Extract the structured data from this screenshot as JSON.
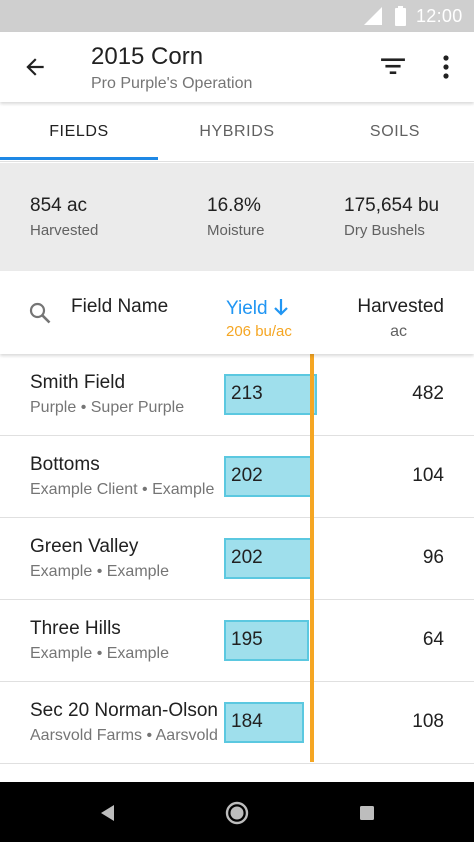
{
  "status_bar": {
    "time": "12:00"
  },
  "app_bar": {
    "title": "2015 Corn",
    "subtitle": "Pro Purple's Operation"
  },
  "tabs": [
    {
      "label": "FIELDS",
      "active": true
    },
    {
      "label": "HYBRIDS",
      "active": false
    },
    {
      "label": "SOILS",
      "active": false
    }
  ],
  "summary": [
    {
      "value": "854 ac",
      "label": "Harvested"
    },
    {
      "value": "16.8%",
      "label": "Moisture"
    },
    {
      "value": "175,654 bu",
      "label": "Dry Bushels"
    }
  ],
  "column_headers": {
    "field_name": "Field Name",
    "yield": "Yield",
    "yield_sub": "206 bu/ac",
    "harvested": "Harvested",
    "harvested_sub": "ac"
  },
  "fields": [
    {
      "name": "Smith Field",
      "sub": "Purple • Super Purple",
      "yield": "213",
      "yield_value": 213,
      "harvested": "482"
    },
    {
      "name": "Bottoms",
      "sub": "Example Client • Example",
      "yield": "202",
      "yield_value": 202,
      "harvested": "104"
    },
    {
      "name": "Green Valley",
      "sub": "Example • Example",
      "yield": "202",
      "yield_value": 202,
      "harvested": "96"
    },
    {
      "name": "Three Hills",
      "sub": "Example • Example",
      "yield": "195",
      "yield_value": 195,
      "harvested": "64"
    },
    {
      "name": "Sec 20 Norman-Olson",
      "sub": "Aarsvold Farms • Aarsvold",
      "yield": "184",
      "yield_value": 184,
      "harvested": "108"
    }
  ],
  "colors": {
    "accent_blue": "#2196f3",
    "average_line": "#f5a623",
    "yield_bar_fill": "#9fdfec",
    "yield_bar_border": "#5bc8e0"
  },
  "icons": [
    "signal-icon",
    "battery-icon",
    "back-arrow-icon",
    "filter-icon",
    "more-vert-icon",
    "search-icon",
    "arrow-down-icon",
    "nav-back-icon",
    "nav-home-icon",
    "nav-recents-icon"
  ]
}
